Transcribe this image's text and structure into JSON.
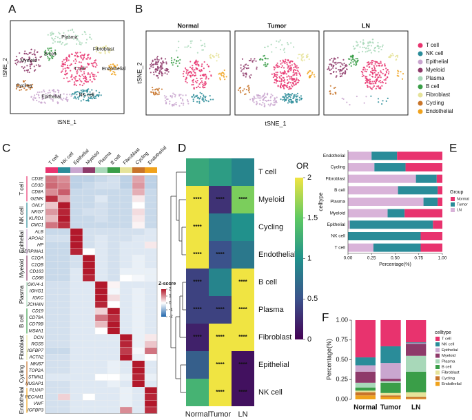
{
  "chart_data": [
    {
      "type": "tsne",
      "panel": "A",
      "xlabel": "tSNE_1",
      "ylabel": "tSNE_2",
      "labels": [
        "T cell",
        "NK cell",
        "Epithelial",
        "Myeloid",
        "Plasma",
        "B cell",
        "Fibroblast",
        "Cycling",
        "Endothelial"
      ]
    },
    {
      "type": "tsne-facets",
      "panel": "B",
      "xlabel": "tSNE_1",
      "ylabel": "tSNE_2",
      "facets": [
        "Normal",
        "Tumor",
        "LN"
      ],
      "celltypes": [
        {
          "name": "T cell",
          "color": "#e8336e"
        },
        {
          "name": "NK cell",
          "color": "#2a8c99"
        },
        {
          "name": "Epithelial",
          "color": "#c9a6cf"
        },
        {
          "name": "Myeloid",
          "color": "#8e3a6a"
        },
        {
          "name": "Plasma",
          "color": "#a8d8b9"
        },
        {
          "name": "B cell",
          "color": "#3a9e48"
        },
        {
          "name": "Fibroblast",
          "color": "#e6e39a"
        },
        {
          "name": "Cycling",
          "color": "#c8742a"
        },
        {
          "name": "Endothelial",
          "color": "#f0a21c"
        }
      ]
    },
    {
      "type": "heatmap",
      "panel": "C",
      "columns": [
        "T cell",
        "NK cell",
        "Epithelial",
        "Myeloid",
        "Plasma",
        "B cell",
        "Fibroblast",
        "Cycling",
        "Endothelial"
      ],
      "row_groups": [
        "T cell",
        "NK cell",
        "Epithelial",
        "Myeloid",
        "Plasma",
        "B cell",
        "Fibroblast",
        "Cycling",
        "Endothelial"
      ],
      "rows": [
        "CD3E",
        "CD3D",
        "CD8A",
        "GZMK",
        "GNLY",
        "NKG7",
        "KLRD1",
        "CMC1",
        "ALB",
        "APOA2",
        "HP",
        "SERPINA1",
        "C1QA",
        "C1QB",
        "CD163",
        "CD68",
        "IGKV4-1",
        "IGHG1",
        "IGKC",
        "JCHAIN",
        "CD19",
        "CD79A",
        "CD79B",
        "MS4A1",
        "DCN",
        "RGS5",
        "IGFBP7",
        "ACTA2",
        "MKI67",
        "TOP2A",
        "STMN1",
        "NUSAP1",
        "PLVAP",
        "PECAM1",
        "VWF",
        "IGFBP3"
      ],
      "values": [
        [
          1.2,
          1.0,
          -0.6,
          -0.6,
          -0.5,
          -0.4,
          -0.6,
          0.8,
          -0.6
        ],
        [
          1.3,
          1.1,
          -0.6,
          -0.5,
          -0.4,
          -0.4,
          -0.6,
          0.9,
          -0.6
        ],
        [
          1.0,
          1.4,
          -0.5,
          -0.5,
          -0.5,
          -0.5,
          -0.5,
          0.7,
          -0.5
        ],
        [
          1.8,
          0.8,
          -0.5,
          -0.5,
          -0.3,
          -0.5,
          -0.5,
          0.2,
          -0.5
        ],
        [
          0.5,
          2.0,
          -0.5,
          -0.5,
          -0.4,
          -0.5,
          -0.5,
          0.0,
          -0.5
        ],
        [
          0.9,
          1.9,
          -0.5,
          -0.4,
          -0.4,
          -0.5,
          -0.5,
          0.3,
          -0.5
        ],
        [
          0.6,
          2.0,
          -0.5,
          -0.5,
          -0.4,
          -0.5,
          -0.5,
          0.2,
          -0.5
        ],
        [
          1.2,
          1.8,
          -0.5,
          -0.5,
          -0.5,
          -0.5,
          -0.5,
          0.1,
          -0.5
        ],
        [
          -0.5,
          -0.5,
          2.0,
          -0.4,
          -0.4,
          -0.4,
          -0.4,
          -0.4,
          -0.3
        ],
        [
          -0.4,
          -0.4,
          2.0,
          -0.4,
          -0.3,
          -0.4,
          -0.4,
          -0.3,
          -0.3
        ],
        [
          -0.5,
          -0.5,
          2.0,
          -0.4,
          -0.3,
          -0.4,
          -0.3,
          -0.3,
          0.2
        ],
        [
          -0.5,
          -0.5,
          1.9,
          0.0,
          -0.3,
          -0.4,
          -0.3,
          -0.3,
          -0.3
        ],
        [
          -0.5,
          -0.5,
          -0.4,
          2.0,
          -0.3,
          -0.4,
          -0.3,
          -0.2,
          -0.3
        ],
        [
          -0.5,
          -0.5,
          -0.4,
          2.0,
          -0.3,
          -0.4,
          -0.3,
          -0.2,
          -0.3
        ],
        [
          -0.5,
          -0.5,
          -0.3,
          2.0,
          -0.3,
          -0.4,
          -0.2,
          -0.2,
          -0.2
        ],
        [
          -0.5,
          -0.5,
          -0.3,
          1.9,
          -0.3,
          -0.4,
          0.0,
          -0.1,
          -0.2
        ],
        [
          -0.4,
          -0.4,
          -0.3,
          -0.3,
          2.0,
          0.1,
          -0.3,
          -0.3,
          -0.3
        ],
        [
          -0.4,
          -0.4,
          -0.3,
          -0.3,
          2.0,
          -0.1,
          -0.3,
          -0.2,
          -0.3
        ],
        [
          -0.4,
          -0.4,
          -0.3,
          -0.3,
          2.0,
          0.3,
          -0.3,
          -0.2,
          -0.3
        ],
        [
          -0.4,
          -0.4,
          -0.3,
          -0.3,
          1.9,
          0.0,
          -0.3,
          -0.2,
          -0.3
        ],
        [
          -0.4,
          -0.4,
          -0.3,
          -0.3,
          0.4,
          2.0,
          -0.3,
          -0.2,
          -0.3
        ],
        [
          -0.4,
          -0.4,
          -0.3,
          -0.3,
          1.2,
          1.8,
          -0.3,
          -0.2,
          -0.3
        ],
        [
          -0.4,
          -0.4,
          -0.3,
          -0.3,
          0.6,
          2.0,
          -0.3,
          -0.2,
          -0.3
        ],
        [
          -0.4,
          -0.4,
          -0.3,
          -0.3,
          0.0,
          2.0,
          -0.3,
          -0.2,
          -0.3
        ],
        [
          -0.4,
          -0.4,
          -0.3,
          -0.3,
          -0.3,
          -0.3,
          2.0,
          -0.2,
          0.2
        ],
        [
          -0.4,
          -0.4,
          -0.3,
          -0.3,
          -0.3,
          -0.3,
          1.9,
          -0.2,
          0.5
        ],
        [
          -0.5,
          -0.5,
          -0.3,
          -0.3,
          -0.3,
          -0.3,
          1.7,
          -0.1,
          1.2
        ],
        [
          -0.4,
          -0.4,
          -0.3,
          -0.3,
          -0.3,
          -0.3,
          2.0,
          -0.2,
          0.0
        ],
        [
          -0.4,
          -0.4,
          -0.3,
          -0.3,
          -0.3,
          -0.2,
          -0.3,
          2.0,
          -0.3
        ],
        [
          -0.4,
          -0.4,
          -0.3,
          -0.3,
          -0.3,
          -0.2,
          -0.3,
          2.0,
          -0.3
        ],
        [
          -0.3,
          -0.3,
          -0.3,
          -0.3,
          0.0,
          0.0,
          -0.2,
          1.9,
          -0.2
        ],
        [
          -0.4,
          -0.4,
          -0.3,
          -0.3,
          -0.3,
          -0.2,
          -0.3,
          2.0,
          -0.3
        ],
        [
          -0.4,
          -0.4,
          -0.3,
          -0.3,
          -0.3,
          -0.3,
          -0.2,
          -0.3,
          2.0
        ],
        [
          -0.4,
          0.4,
          -0.3,
          0.0,
          -0.3,
          -0.3,
          -0.2,
          -0.3,
          1.9
        ],
        [
          -0.4,
          -0.4,
          -0.3,
          -0.3,
          -0.3,
          -0.3,
          -0.2,
          -0.3,
          2.0
        ],
        [
          -0.4,
          -0.4,
          -0.3,
          -0.3,
          -0.3,
          -0.3,
          1.0,
          -0.3,
          1.8
        ]
      ],
      "colorbar": {
        "title": "Z-score",
        "lim": [
          -2,
          2
        ],
        "ticks": [
          2,
          1,
          0,
          -1,
          -2
        ]
      }
    },
    {
      "type": "heatmap-or",
      "panel": "D",
      "rows": [
        "T cell",
        "Myeloid",
        "Cycling",
        "Endothelial",
        "B cell",
        "Plasma",
        "Fibroblast",
        "Epithelial",
        "NK cell"
      ],
      "columns": [
        "Normal",
        "Tumor",
        "LN"
      ],
      "values": [
        [
          1.2,
          1.1,
          0.9
        ],
        [
          2,
          0.3,
          1.6
        ],
        [
          2,
          0.8,
          1.0
        ],
        [
          2,
          0.5,
          0.8
        ],
        [
          0.4,
          0.9,
          2
        ],
        [
          0.4,
          0.4,
          2
        ],
        [
          0.2,
          2,
          2
        ],
        [
          0.6,
          2,
          0.1
        ],
        [
          1.3,
          2,
          0.1
        ]
      ],
      "annotations": [
        [
          null,
          null,
          null
        ],
        [
          "****",
          "****",
          "****"
        ],
        [
          "****",
          null,
          null
        ],
        [
          "****",
          "****",
          null
        ],
        [
          "****",
          null,
          "****"
        ],
        [
          "****",
          "****",
          "****"
        ],
        [
          "****",
          "****",
          "****"
        ],
        [
          null,
          "****",
          "****"
        ],
        [
          null,
          "****",
          "****"
        ]
      ],
      "colorbar": {
        "title": "OR",
        "lim": [
          0,
          2
        ],
        "ticks": [
          0,
          0.5,
          1,
          1.5,
          2
        ]
      }
    },
    {
      "type": "stacked-barh",
      "panel": "E",
      "xlabel": "Percentage(%)",
      "ylabel": "celltype",
      "legend_title": "Group",
      "categories": [
        "T cell",
        "NK cell",
        "Epithelial",
        "Myeloid",
        "Plasma",
        "B cell",
        "Fibroblast",
        "Cycling",
        "Endothelial"
      ],
      "series": [
        {
          "name": "Normal",
          "color": "#e8336e",
          "values": [
            0.23,
            0.23,
            0.1,
            0.4,
            0.05,
            0.05,
            0.06,
            0.39,
            0.48
          ]
        },
        {
          "name": "Tumor",
          "color": "#2a8c99",
          "values": [
            0.5,
            0.77,
            0.88,
            0.18,
            0.15,
            0.42,
            0.22,
            0.33,
            0.27
          ]
        },
        {
          "name": "LN",
          "color": "#d9b3d9",
          "values": [
            0.27,
            0.0,
            0.02,
            0.42,
            0.8,
            0.53,
            0.72,
            0.28,
            0.25
          ]
        }
      ],
      "xlim": [
        0,
        1
      ],
      "xticks": [
        {
          "value": 0,
          "label": "0.00"
        },
        {
          "value": 0.25,
          "label": "0.25"
        },
        {
          "value": 0.5,
          "label": "0.50"
        },
        {
          "value": 0.75,
          "label": "0.75"
        },
        {
          "value": 1,
          "label": "1.00"
        }
      ]
    },
    {
      "type": "stacked-bar",
      "panel": "F",
      "ylabel": "Percentage(%)",
      "legend_title": "celltype",
      "categories": [
        "Normal",
        "Tumor",
        "LN"
      ],
      "series": [
        {
          "name": "T cell",
          "color": "#e8336e",
          "values": [
            0.47,
            0.33,
            0.28
          ]
        },
        {
          "name": "NK cell",
          "color": "#2a8c99",
          "values": [
            0.1,
            0.21,
            0.01
          ]
        },
        {
          "name": "Epithelial",
          "color": "#c9a6cf",
          "values": [
            0.08,
            0.2,
            0.01
          ]
        },
        {
          "name": "Myeloid",
          "color": "#8e3a6a",
          "values": [
            0.14,
            0.03,
            0.15
          ]
        },
        {
          "name": "Plasma",
          "color": "#a8d8b9",
          "values": [
            0.06,
            0.02,
            0.2
          ]
        },
        {
          "name": "B cell",
          "color": "#3a9e48",
          "values": [
            0.04,
            0.13,
            0.26
          ]
        },
        {
          "name": "Fibroblast",
          "color": "#e6e39a",
          "values": [
            0.02,
            0.03,
            0.06
          ]
        },
        {
          "name": "Cycling",
          "color": "#c8742a",
          "values": [
            0.04,
            0.02,
            0.02
          ]
        },
        {
          "name": "Endothelial",
          "color": "#f0a21c",
          "values": [
            0.05,
            0.03,
            0.01
          ]
        }
      ],
      "ylim": [
        0,
        1
      ],
      "yticks": [
        {
          "value": 0,
          "label": "0.00"
        },
        {
          "value": 0.25,
          "label": "0.25"
        },
        {
          "value": 0.5,
          "label": "0.50"
        },
        {
          "value": 0.75,
          "label": "0.75"
        },
        {
          "value": 1,
          "label": "1.00"
        }
      ]
    }
  ]
}
